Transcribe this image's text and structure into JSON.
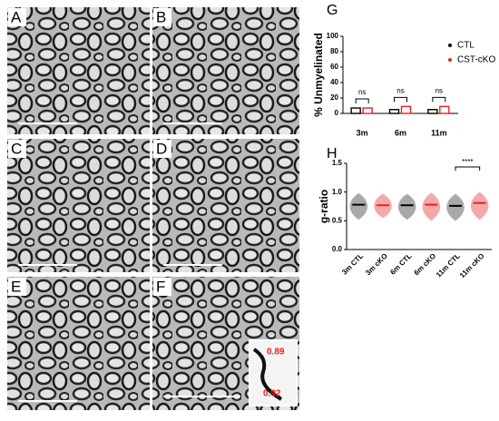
{
  "panels": [
    "A",
    "B",
    "C",
    "D",
    "E",
    "F"
  ],
  "inset_labels": [
    "0.89",
    "0.92"
  ],
  "chart_data": [
    {
      "type": "bar",
      "label": "G",
      "y_label": "% Unmyelinated",
      "categories": [
        "3m",
        "6m",
        "11m"
      ],
      "series": [
        {
          "name": "CTL",
          "color": "#000000",
          "values": [
            7,
            5,
            5
          ]
        },
        {
          "name": "CST-cKO",
          "color": "#e8231f",
          "values": [
            7,
            9,
            9
          ]
        }
      ],
      "annotations": [
        "ns",
        "ns",
        "ns"
      ],
      "ylim": [
        0,
        100
      ],
      "yticks": [
        0,
        20,
        40,
        60,
        80,
        100
      ]
    },
    {
      "type": "violin",
      "label": "H",
      "y_label": "g-ratio",
      "categories": [
        "3m CTL",
        "3m cKO",
        "6m CTL",
        "6m cKO",
        "11m CTL",
        "11m cKO"
      ],
      "values": [
        0.78,
        0.77,
        0.77,
        0.78,
        0.76,
        0.81
      ],
      "ranges": [
        [
          0.52,
          0.98
        ],
        [
          0.55,
          0.97
        ],
        [
          0.52,
          0.97
        ],
        [
          0.5,
          0.99
        ],
        [
          0.5,
          0.97
        ],
        [
          0.52,
          1.0
        ]
      ],
      "colors": [
        "#9a9a9a",
        "#f29a9a",
        "#9a9a9a",
        "#f29a9a",
        "#9a9a9a",
        "#f29a9a"
      ],
      "median_colors": [
        "#000000",
        "#e8231f",
        "#000000",
        "#e8231f",
        "#000000",
        "#e8231f"
      ],
      "annotation": "****",
      "ylim": [
        0,
        1.5
      ],
      "yticks": [
        {
          "value": 0,
          "label": "0.0"
        },
        {
          "value": 0.5,
          "label": "0.5"
        },
        {
          "value": 1,
          "label": "1.0"
        },
        {
          "value": 1.5,
          "label": "1.5"
        }
      ]
    }
  ]
}
